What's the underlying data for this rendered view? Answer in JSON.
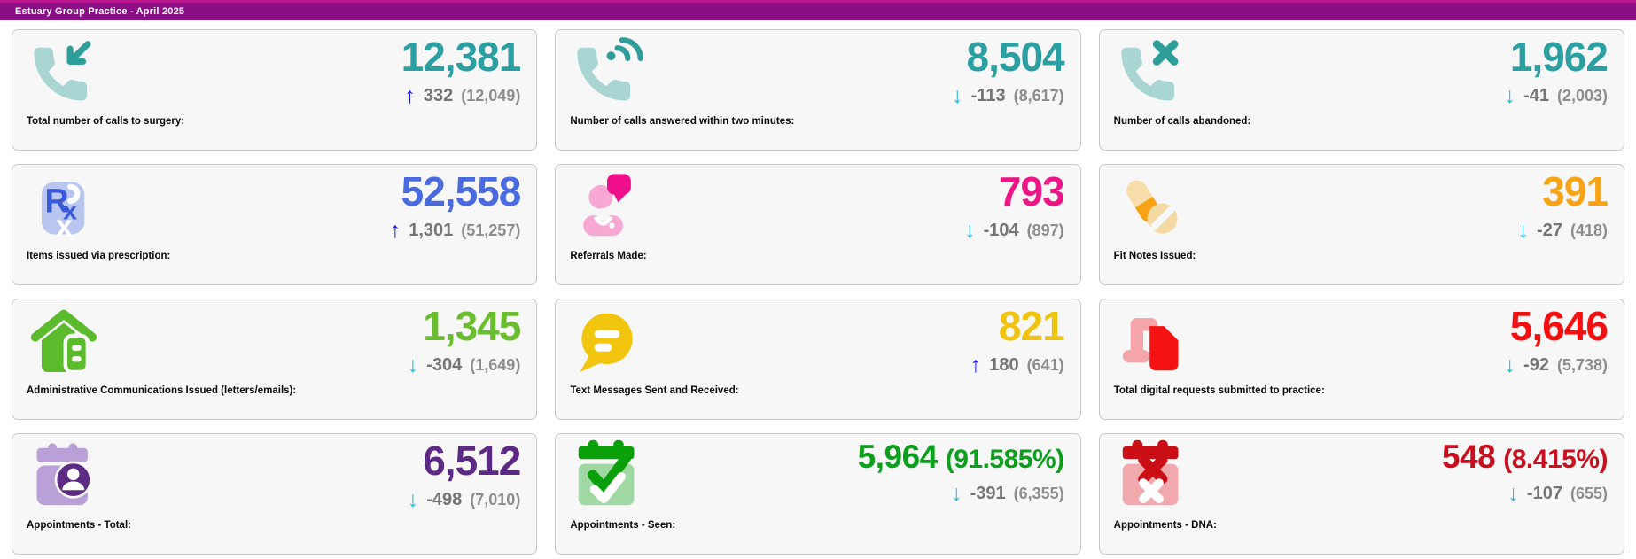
{
  "header": {
    "title": "Estuary Group Practice - April 2025",
    "bar_color": "#8a0d86",
    "top_strip_color": "#b8158f"
  },
  "arrow_colors": {
    "up": "#1b1bec",
    "down": "#2bb8e0"
  },
  "cards": [
    {
      "label": "Total number of calls to surgery:",
      "value": "12,381",
      "suffix": "",
      "accent": "#2b9fa1",
      "trend": "up",
      "delta": "332",
      "previous": "(12,049)",
      "icon": "phone-incoming-call-icon"
    },
    {
      "label": "Number of calls answered within two minutes:",
      "value": "8,504",
      "suffix": "",
      "accent": "#2b9fa1",
      "trend": "down",
      "delta": "-113",
      "previous": "(8,617)",
      "icon": "phone-ringing-icon"
    },
    {
      "label": "Number of calls abandoned:",
      "value": "1,962",
      "suffix": "",
      "accent": "#2b9fa1",
      "trend": "down",
      "delta": "-41",
      "previous": "(2,003)",
      "icon": "phone-missed-call-icon"
    },
    {
      "label": "Items issued via prescription:",
      "value": "52,558",
      "suffix": "",
      "accent": "#4a6ae0",
      "trend": "up",
      "delta": "1,301",
      "previous": "(51,257)",
      "icon": "prescription-rx-icon"
    },
    {
      "label": "Referrals Made:",
      "value": "793",
      "suffix": "",
      "accent": "#ee1687",
      "trend": "down",
      "delta": "-104",
      "previous": "(897)",
      "icon": "referral-doctor-chat-icon"
    },
    {
      "label": "Fit Notes Issued:",
      "value": "391",
      "suffix": "",
      "accent": "#f7a315",
      "trend": "down",
      "delta": "-27",
      "previous": "(418)",
      "icon": "pills-icon"
    },
    {
      "label": "Administrative Communications Issued (letters/emails):",
      "value": "1,345",
      "suffix": "",
      "accent": "#69bd2f",
      "trend": "down",
      "delta": "-304",
      "previous": "(1,649)",
      "icon": "home-letter-icon"
    },
    {
      "label": "Text Messages Sent and Received:",
      "value": "821",
      "suffix": "",
      "accent": "#f0c40e",
      "trend": "up",
      "delta": "180",
      "previous": "(641)",
      "icon": "chat-bubble-icon"
    },
    {
      "label": "Total digital requests submitted to practice:",
      "value": "5,646",
      "suffix": "",
      "accent": "#f60f0f",
      "trend": "down",
      "delta": "-92",
      "previous": "(5,738)",
      "icon": "laptop-document-icon"
    },
    {
      "label": "Appointments - Total:",
      "value": "6,512",
      "suffix": "",
      "accent": "#5c2a84",
      "trend": "down",
      "delta": "-498",
      "previous": "(7,010)",
      "icon": "calendar-person-icon"
    },
    {
      "label": "Appointments - Seen:",
      "value": "5,964",
      "suffix": "(91.585%)",
      "accent": "#0aa01b",
      "trend": "down",
      "delta": "-391",
      "previous": "(6,355)",
      "icon": "calendar-check-icon"
    },
    {
      "label": "Appointments - DNA:",
      "value": "548",
      "suffix": "(8.415%)",
      "accent": "#c90f1f",
      "trend": "down",
      "delta": "-107",
      "previous": "(655)",
      "icon": "calendar-x-icon"
    }
  ]
}
